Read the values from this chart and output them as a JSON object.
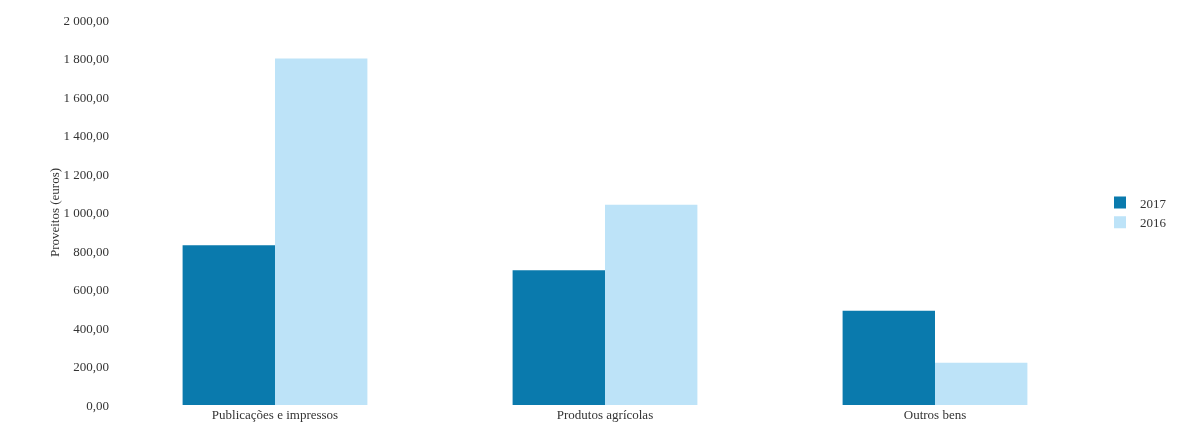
{
  "chart_data": {
    "type": "bar",
    "ylabel": "Proveitos (euros)",
    "categories": [
      "Publicações e impressos",
      "Produtos agrícolas",
      "Outros bens"
    ],
    "series": [
      {
        "name": "2017",
        "color": "#0a7aad",
        "values": [
          830,
          700,
          490
        ]
      },
      {
        "name": "2016",
        "color": "#bde3f8",
        "values": [
          1800,
          1040,
          220
        ]
      }
    ],
    "ylim": [
      0,
      2000
    ],
    "yticks": [
      {
        "value": 0,
        "label": "0,00"
      },
      {
        "value": 200,
        "label": "200,00"
      },
      {
        "value": 400,
        "label": "400,00"
      },
      {
        "value": 600,
        "label": "600,00"
      },
      {
        "value": 800,
        "label": "800,00"
      },
      {
        "value": 1000,
        "label": "1 000,00"
      },
      {
        "value": 1200,
        "label": "1 200,00"
      },
      {
        "value": 1400,
        "label": "1 400,00"
      },
      {
        "value": 1600,
        "label": "1 600,00"
      },
      {
        "value": 1800,
        "label": "1 800,00"
      },
      {
        "value": 2000,
        "label": "2 000,00"
      }
    ],
    "grid": false,
    "legend": "right"
  }
}
